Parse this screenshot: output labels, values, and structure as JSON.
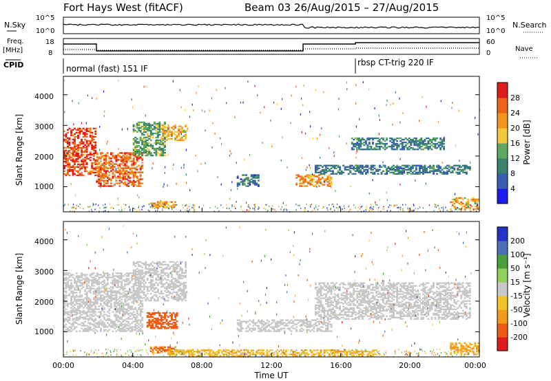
{
  "header": {
    "radar": "Fort Hays West (fitACF)",
    "beam": "Beam 03 26/Aug/2015 – 27/Aug/2015"
  },
  "summary": {
    "nsky_label": "N.Sky",
    "nsearch_label": "N.Search",
    "freq_label": "Freq.",
    "freq_unit": "[MHz]",
    "nave_label": "Nave",
    "cpid_label": "CPID",
    "noise_ticks": [
      "10^5",
      "10^0"
    ],
    "freq_ticks": [
      "18",
      "8"
    ],
    "nave_ticks": [
      "60",
      "0"
    ],
    "cpid_1": "normal (fast) 151 IF",
    "cpid_2": "rbsp CT-trig 220 IF"
  },
  "axes": {
    "ylabel": "Slant Range [km]",
    "xlabel": "Time UT",
    "yticks": [
      "1000",
      "2000",
      "3000",
      "4000"
    ],
    "xticks": [
      "00:00",
      "04:00",
      "08:00",
      "12:00",
      "16:00",
      "20:00",
      "00:00"
    ]
  },
  "colorbars": {
    "power": {
      "label": "Power [dB]",
      "ticks": [
        "4",
        "8",
        "12",
        "16",
        "20",
        "24",
        "28"
      ],
      "colors": [
        "#1c1cf0",
        "#3a5fb0",
        "#37836f",
        "#5fa85f",
        "#f3c93a",
        "#f5931f",
        "#ef6318",
        "#e01b1b"
      ]
    },
    "velocity": {
      "label": "Velocity [m s⁻¹]",
      "ticks": [
        "200",
        "100",
        "50",
        "15",
        "-15",
        "-50",
        "-100",
        "-200"
      ],
      "colors": [
        "#2333c8",
        "#4a6fb7",
        "#4a9f3c",
        "#8dd05a",
        "#c8c8c8",
        "#f3c32a",
        "#f59a1a",
        "#ef5a10",
        "#e01b1b"
      ]
    }
  },
  "chart_data": [
    {
      "type": "heatmap",
      "name": "Power",
      "xlabel": "Time UT",
      "ylabel": "Slant Range [km]",
      "xlim_hours": [
        0,
        24
      ],
      "ylim_km": [
        180,
        4600
      ],
      "colorbar_label": "Power [dB]",
      "colorbar_range_db": [
        0,
        32
      ],
      "regions": [
        {
          "t": [
            0.0,
            1.9
          ],
          "r": [
            1350,
            2900
          ],
          "value": 27
        },
        {
          "t": [
            1.9,
            4.6
          ],
          "r": [
            1000,
            2100
          ],
          "value": 25
        },
        {
          "t": [
            4.0,
            5.8
          ],
          "r": [
            2000,
            3100
          ],
          "value": 13
        },
        {
          "t": [
            5.6,
            7.0
          ],
          "r": [
            2500,
            3000
          ],
          "value": 20
        },
        {
          "t": [
            5.0,
            6.4
          ],
          "r": [
            300,
            500
          ],
          "value": 21
        },
        {
          "t": [
            10.0,
            11.2
          ],
          "r": [
            1000,
            1400
          ],
          "value": 8
        },
        {
          "t": [
            13.4,
            15.4
          ],
          "r": [
            1000,
            1400
          ],
          "value": 22
        },
        {
          "t": [
            14.5,
            23.5
          ],
          "r": [
            1400,
            1700
          ],
          "value": 9
        },
        {
          "t": [
            16.6,
            22.0
          ],
          "r": [
            2200,
            2600
          ],
          "value": 9
        },
        {
          "t": [
            22.3,
            24.0
          ],
          "r": [
            250,
            650
          ],
          "value": 20
        }
      ]
    },
    {
      "type": "heatmap",
      "name": "Velocity",
      "xlabel": "Time UT",
      "ylabel": "Slant Range [km]",
      "xlim_hours": [
        0,
        24
      ],
      "ylim_km": [
        180,
        4600
      ],
      "colorbar_label": "Velocity [m s⁻¹]",
      "colorbar_range_ms": [
        -250,
        250
      ],
      "regions": [
        {
          "t": [
            0.0,
            4.6
          ],
          "r": [
            1000,
            2900
          ],
          "value": 0
        },
        {
          "t": [
            4.0,
            7.0
          ],
          "r": [
            2000,
            3300
          ],
          "value": 0
        },
        {
          "t": [
            5.0,
            6.4
          ],
          "r": [
            300,
            500
          ],
          "value": -110
        },
        {
          "t": [
            4.8,
            6.5
          ],
          "r": [
            1100,
            1600
          ],
          "value": -150
        },
        {
          "t": [
            10.0,
            15.4
          ],
          "r": [
            1000,
            1400
          ],
          "value": 0
        },
        {
          "t": [
            14.5,
            23.5
          ],
          "r": [
            1400,
            2600
          ],
          "value": 0
        },
        {
          "t": [
            6.0,
            18.0
          ],
          "r": [
            200,
            400
          ],
          "value": -40
        },
        {
          "t": [
            22.3,
            24.0
          ],
          "r": [
            250,
            650
          ],
          "value": -60
        }
      ]
    }
  ]
}
